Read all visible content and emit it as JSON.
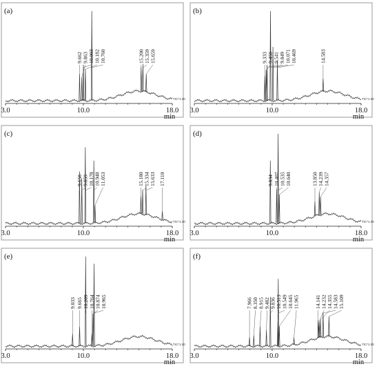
{
  "chart_data": [
    {
      "type": "line",
      "label": "(a)",
      "xlim": [
        3.0,
        18.0
      ],
      "x_ticks": [
        "3.0",
        "10.0",
        "18.0"
      ],
      "x_unit": "min",
      "trace_label": "TIC*1.00",
      "peaks": [
        {
          "rt": 9.662,
          "label": "9.662",
          "h": 0.3
        },
        {
          "rt": 9.863,
          "label": "9.863",
          "h": 0.26
        },
        {
          "rt": 10.003,
          "label": "10.003",
          "h": 0.4
        },
        {
          "rt": 10.182,
          "label": "10.182",
          "h": 0.35
        },
        {
          "rt": 10.76,
          "label": "10.760",
          "h": 1.0
        },
        {
          "rt": 15.2,
          "label": "15.200",
          "h": 0.3
        },
        {
          "rt": 15.359,
          "label": "15.359",
          "h": 0.34
        },
        {
          "rt": 15.659,
          "label": "15.659",
          "h": 0.22
        }
      ]
    },
    {
      "type": "line",
      "label": "(b)",
      "xlim": [
        3.0,
        18.0
      ],
      "x_ticks": [
        "3.0",
        "10.0",
        "18.0"
      ],
      "x_unit": "min",
      "trace_label": "TIC*1.00",
      "peaks": [
        {
          "rt": 9.333,
          "label": "9.333",
          "h": 0.28
        },
        {
          "rt": 9.458,
          "label": "9.458",
          "h": 0.34
        },
        {
          "rt": 9.541,
          "label": "9.541",
          "h": 0.4
        },
        {
          "rt": 9.849,
          "label": "9.849",
          "h": 1.0
        },
        {
          "rt": 10.071,
          "label": "10.071",
          "h": 0.6
        },
        {
          "rt": 10.469,
          "label": "10.469",
          "h": 0.45
        },
        {
          "rt": 14.583,
          "label": "14.583",
          "h": 0.16
        }
      ]
    },
    {
      "type": "line",
      "label": "(c)",
      "xlim": [
        3.0,
        18.0
      ],
      "x_ticks": [
        "3.0",
        "10.0",
        "18.0"
      ],
      "x_unit": "min",
      "trace_label": "TIC*1.00",
      "peaks": [
        {
          "rt": 9.658,
          "label": "9.658",
          "h": 0.58
        },
        {
          "rt": 9.859,
          "label": "9.859",
          "h": 0.5
        },
        {
          "rt": 10.178,
          "label": "10.178",
          "h": 0.85
        },
        {
          "rt": 10.948,
          "label": "10.948",
          "h": 0.7
        },
        {
          "rt": 11.053,
          "label": "11.053",
          "h": 0.2
        },
        {
          "rt": 15.18,
          "label": "15.180",
          "h": 0.22
        },
        {
          "rt": 15.334,
          "label": "15.334",
          "h": 0.3
        },
        {
          "rt": 15.633,
          "label": "15.633",
          "h": 0.36
        },
        {
          "rt": 17.11,
          "label": "17.110",
          "h": 0.1
        }
      ]
    },
    {
      "type": "line",
      "label": "(d)",
      "xlim": [
        3.0,
        18.0
      ],
      "x_ticks": [
        "3.0",
        "10.0",
        "18.0"
      ],
      "x_unit": "min",
      "trace_label": "TIC*1.00",
      "peaks": [
        {
          "rt": 9.834,
          "label": "9.834",
          "h": 0.7
        },
        {
          "rt": 10.407,
          "label": "10.407",
          "h": 0.38
        },
        {
          "rt": 10.535,
          "label": "10.535",
          "h": 1.0
        },
        {
          "rt": 10.64,
          "label": "10.640",
          "h": 0.32
        },
        {
          "rt": 13.85,
          "label": "13.850",
          "h": 0.18
        },
        {
          "rt": 14.239,
          "label": "14.239",
          "h": 0.28
        },
        {
          "rt": 14.357,
          "label": "14.357",
          "h": 0.22
        }
      ]
    },
    {
      "type": "line",
      "label": "(e)",
      "xlim": [
        3.0,
        18.0
      ],
      "x_ticks": [
        "3.0",
        "10.0",
        "18.0"
      ],
      "x_unit": "min",
      "trace_label": "TIC*1.00",
      "peaks": [
        {
          "rt": 9.033,
          "label": "9.033",
          "h": 0.14
        },
        {
          "rt": 9.665,
          "label": "9.665",
          "h": 0.22
        },
        {
          "rt": 10.209,
          "label": "10.209",
          "h": 1.0
        },
        {
          "rt": 10.764,
          "label": "10.764",
          "h": 0.14
        },
        {
          "rt": 10.874,
          "label": "10.874",
          "h": 0.36
        },
        {
          "rt": 10.965,
          "label": "10.965",
          "h": 0.92
        }
      ]
    },
    {
      "type": "line",
      "label": "(f)",
      "xlim": [
        3.0,
        18.0
      ],
      "x_ticks": [
        "3.0",
        "10.0",
        "18.0"
      ],
      "x_unit": "min",
      "trace_label": "TIC*1.00",
      "peaks": [
        {
          "rt": 7.966,
          "label": "7.966",
          "h": 0.1
        },
        {
          "rt": 8.35,
          "label": "8.350",
          "h": 0.12
        },
        {
          "rt": 8.915,
          "label": "8.915",
          "h": 0.22
        },
        {
          "rt": 9.482,
          "label": "9.482",
          "h": 0.18
        },
        {
          "rt": 9.836,
          "label": "9.836",
          "h": 0.55
        },
        {
          "rt": 10.513,
          "label": "10.513",
          "h": 0.28
        },
        {
          "rt": 10.549,
          "label": "10.549",
          "h": 0.75
        },
        {
          "rt": 10.645,
          "label": "10.645",
          "h": 0.22
        },
        {
          "rt": 11.965,
          "label": "11.965",
          "h": 0.08
        },
        {
          "rt": 14.141,
          "label": "14.141",
          "h": 0.22
        },
        {
          "rt": 14.232,
          "label": "14.232",
          "h": 0.2
        },
        {
          "rt": 14.355,
          "label": "14.355",
          "h": 0.22
        },
        {
          "rt": 14.583,
          "label": "14.583",
          "h": 0.3
        },
        {
          "rt": 15.109,
          "label": "15.109",
          "h": 0.25
        }
      ]
    }
  ]
}
